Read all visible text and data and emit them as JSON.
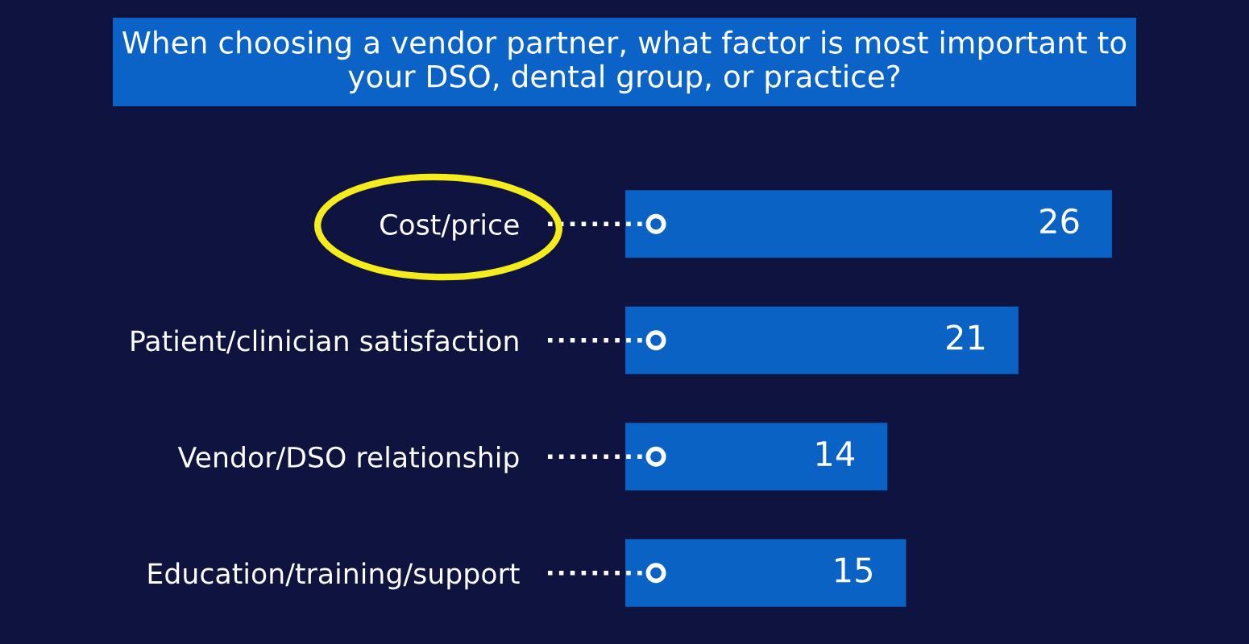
{
  "chart_data": {
    "type": "bar",
    "orientation": "horizontal",
    "title": "When choosing a vendor partner, what factor is most important to your DSO, dental group, or practice?",
    "categories": [
      "Cost/price",
      "Patient/clinician satisfaction",
      "Vendor/DSO relationship",
      "Education/training/support"
    ],
    "values": [
      26,
      21,
      14,
      15
    ],
    "color": "#0a62c4",
    "xlim": [
      0,
      26
    ],
    "tick_labels": "y",
    "data_labels": true
  }
}
